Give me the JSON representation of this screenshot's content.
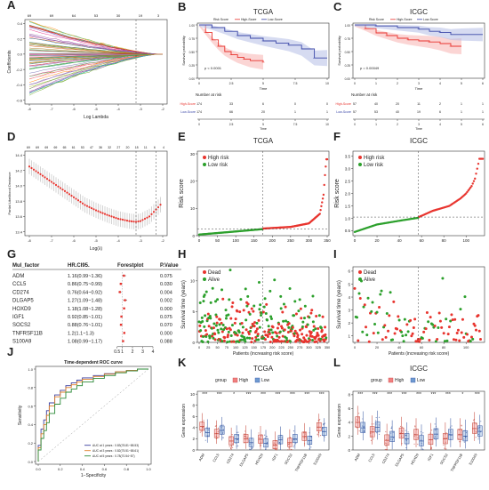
{
  "panel_letters": [
    "A",
    "B",
    "C",
    "D",
    "E",
    "F",
    "G",
    "H",
    "I",
    "J",
    "K",
    "L"
  ],
  "panels": {
    "A": {
      "top_ticks": [
        "69",
        "69",
        "64",
        "53",
        "30",
        "19",
        "3"
      ],
      "ylabel": "Coefficients",
      "xlabel": "Log Lambda",
      "y_ticks": [
        "0.4",
        "0.2",
        "0.0",
        "-0.2",
        "-0.4",
        "-0.6"
      ],
      "x_ticks": [
        "-8",
        "-7",
        "-6",
        "-5",
        "-4",
        "-3",
        "-2"
      ]
    },
    "B": {
      "title": "TCGA",
      "legend_title": "Risk Score",
      "legend_items": [
        "High-Score",
        "Low-Score"
      ],
      "pvalue": "p < 0.0001",
      "ylabel": "Survival probability",
      "xlabel": "Time",
      "risk_title": "Number at risk",
      "risk_rows": [
        {
          "label": "High-Score",
          "values": [
            "174",
            "33",
            "6",
            "0",
            "0"
          ]
        },
        {
          "label": "Low-Score",
          "values": [
            "174",
            "66",
            "20",
            "1",
            "1"
          ]
        }
      ],
      "x_ticks": [
        "0",
        "2.5",
        "5",
        "7.5",
        "10"
      ]
    },
    "C": {
      "title": "ICGC",
      "legend_title": "Risk Score",
      "legend_items": [
        "High-Score",
        "Low-Score"
      ],
      "pvalue": "p = 0.00049",
      "ylabel": "Survival probability",
      "xlabel": "Time",
      "risk_title": "Number at risk",
      "risk_rows": [
        {
          "label": "High-Score",
          "values": [
            "57",
            "40",
            "20",
            "11",
            "2",
            "1",
            "1"
          ]
        },
        {
          "label": "Low-Score",
          "values": [
            "57",
            "53",
            "40",
            "19",
            "6",
            "1",
            "1"
          ]
        }
      ],
      "x_ticks": [
        "0",
        "1",
        "2",
        "3",
        "4",
        "5",
        "6"
      ]
    },
    "D": {
      "top_ticks": [
        "69",
        "69",
        "69",
        "69",
        "65",
        "61",
        "53",
        "47",
        "36",
        "32",
        "27",
        "20",
        "18",
        "11",
        "6",
        "4"
      ],
      "ylabel": "Partial Likelihood Deviance",
      "xlabel": "Log(λ)",
      "x_ticks": [
        "-8",
        "-7",
        "-6",
        "-5",
        "-4",
        "-3",
        "-2"
      ],
      "y_ticks": [
        "14.4",
        "14.2",
        "14.0",
        "13.8",
        "13.6",
        "13.4"
      ]
    },
    "E": {
      "title": "TCGA",
      "legend_items": [
        "High risk",
        "Low risk"
      ],
      "ylabel": "Risk score",
      "y_ticks": [
        "0",
        "10",
        "20",
        "30"
      ],
      "x_ticks": [
        "0",
        "50",
        "100",
        "150",
        "200",
        "250",
        "300",
        "350"
      ]
    },
    "F": {
      "title": "ICGC",
      "legend_items": [
        "High risk",
        "Low risk"
      ],
      "ylabel": "Risk score",
      "y_ticks": [
        "0.5",
        "1.0",
        "1.5",
        "2.0",
        "2.5",
        "3.0",
        "3.5"
      ],
      "x_ticks": [
        "0",
        "20",
        "40",
        "60",
        "80",
        "100"
      ]
    },
    "G": {
      "headers": [
        "Mul_factor",
        "HR.CI95.",
        "Forestplot",
        "P.Value"
      ],
      "rows": [
        {
          "factor": "ADM",
          "hr": "1.16(0.99~1.36)",
          "p": "0.075"
        },
        {
          "factor": "CCL5",
          "hr": "0.86(0.75~0.99)",
          "p": "0.030"
        },
        {
          "factor": "CD274",
          "hr": "0.76(0.64~0.92)",
          "p": "0.004"
        },
        {
          "factor": "DLGAP5",
          "hr": "1.27(1.09~1.48)",
          "p": "0.002"
        },
        {
          "factor": "HOXD9",
          "hr": "1.18(1.08~1.28)",
          "p": "0.000"
        },
        {
          "factor": "IGF1",
          "hr": "0.92(0.85~1.01)",
          "p": "0.075"
        },
        {
          "factor": "SOCS2",
          "hr": "0.88(0.76~1.01)",
          "p": "0.070"
        },
        {
          "factor": "TNFRSF11B",
          "hr": "1.2(1.1~1.3)",
          "p": "0.000"
        },
        {
          "factor": "S100A9",
          "hr": "1.08(0.99~1.17)",
          "p": "0.088"
        }
      ],
      "x_ticks": [
        "0.5",
        "1",
        "2",
        "3",
        "4"
      ]
    },
    "H": {
      "legend_items": [
        "Dead",
        "Alive"
      ],
      "ylabel": "Survival time (years)",
      "xlabel": "Patients (increasing risk score)",
      "y_ticks": [
        "0",
        "5",
        "10"
      ],
      "x_ticks": [
        "0",
        "25",
        "50",
        "75",
        "100",
        "125",
        "150",
        "175",
        "200",
        "225",
        "250",
        "275",
        "300",
        "325",
        "350"
      ]
    },
    "I": {
      "legend_items": [
        "Dead",
        "Alive"
      ],
      "ylabel": "Survival time (years)",
      "xlabel": "Patients (increasing risk score)",
      "y_ticks": [
        "1",
        "2",
        "3",
        "4",
        "5",
        "6"
      ],
      "x_ticks": [
        "0",
        "20",
        "40",
        "60",
        "80",
        "100"
      ]
    },
    "J": {
      "title": "Time-dependent ROC curve",
      "ylabel": "Sensitivity",
      "xlabel": "1−Specificity",
      "y_ticks": [
        "0.0",
        "0.2",
        "0.4",
        "0.6",
        "0.8",
        "1.0"
      ],
      "x_ticks": [
        "0.0",
        "0.2",
        "0.4",
        "0.6",
        "0.8",
        "1.0"
      ],
      "legend_items": [
        {
          "label": "AUC at 1 years : 0.83(78.81~88.53)",
          "color": "#3b3fa0"
        },
        {
          "label": "AUC at 3 years : 0.82(75.51~88.61)",
          "color": "#e0802a"
        },
        {
          "label": "AUC at 5 years : 0.78(70.54~87)",
          "color": "#2e8b3a"
        }
      ]
    },
    "K": {
      "title": "TCGA",
      "legend_title": "group",
      "legend_items": [
        "High",
        "Low"
      ],
      "ylabel": "Gene expression",
      "genes": [
        "ADM",
        "CCL5",
        "CD274",
        "DLGAP5",
        "HOXD9",
        "IGF1",
        "SOCS2",
        "TNFRSF11B",
        "S100A9"
      ],
      "sig": [
        "***",
        "***",
        "*",
        "***",
        "***",
        "***",
        "***",
        "***",
        "***"
      ],
      "y_ticks": [
        "0",
        "2",
        "4",
        "6",
        "8",
        "10"
      ]
    },
    "L": {
      "title": "ICGC",
      "legend_title": "group",
      "legend_items": [
        "High",
        "Low"
      ],
      "ylabel": "Gene expression",
      "genes": [
        "ADM",
        "CCL5",
        "CD274",
        "DLGAP5",
        "HOXD9",
        "IGF1",
        "SOCS2",
        "TNFRSF11B",
        "S100A9"
      ],
      "sig": [
        "***",
        "***",
        "***",
        "***",
        "***",
        "***",
        "***",
        "*",
        "***"
      ],
      "y_ticks": [
        "0",
        "2",
        "4",
        "6",
        "8"
      ]
    }
  },
  "colors": {
    "high": "#e8342e",
    "low": "#3b47a8",
    "green": "#2ca02c",
    "box_high": "#f08080",
    "box_low": "#6f9ad0",
    "ci_high": "#f7b3b0",
    "ci_low": "#b5bde6"
  },
  "chart_data": [
    {
      "panel": "A",
      "type": "line",
      "title": "",
      "xlabel": "Log Lambda",
      "ylabel": "Coefficients",
      "xlim": [
        -8,
        -2
      ],
      "ylim": [
        -0.6,
        0.45
      ],
      "series_count": 69,
      "note_values": "LASSO coefficient paths converging to 0 as log lambda increases"
    },
    {
      "panel": "B",
      "type": "line",
      "title": "TCGA",
      "xlabel": "Time",
      "ylabel": "Survival probability",
      "xlim": [
        0,
        10
      ],
      "ylim": [
        0,
        1
      ],
      "series": [
        {
          "name": "High-Score",
          "x": [
            0,
            0.5,
            1,
            1.5,
            2,
            2.5,
            3,
            3.5,
            4,
            5
          ],
          "y": [
            1.0,
            0.86,
            0.72,
            0.6,
            0.5,
            0.44,
            0.39,
            0.36,
            0.33,
            0.3
          ]
        },
        {
          "name": "Low-Score",
          "x": [
            0,
            1,
            2,
            3,
            4,
            5,
            6,
            7,
            8,
            9,
            10
          ],
          "y": [
            1.0,
            0.95,
            0.88,
            0.8,
            0.75,
            0.7,
            0.66,
            0.62,
            0.55,
            0.38,
            0.38
          ]
        }
      ]
    },
    {
      "panel": "C",
      "type": "line",
      "title": "ICGC",
      "xlabel": "Time",
      "ylabel": "Survival probability",
      "xlim": [
        0,
        6
      ],
      "ylim": [
        0,
        1
      ],
      "series": [
        {
          "name": "High-Score",
          "x": [
            0,
            0.5,
            1,
            1.5,
            2,
            2.5,
            3,
            3.5,
            4,
            4.5,
            5
          ],
          "y": [
            1.0,
            0.93,
            0.85,
            0.8,
            0.75,
            0.72,
            0.7,
            0.68,
            0.65,
            0.6,
            0.6
          ]
        },
        {
          "name": "Low-Score",
          "x": [
            0,
            1,
            2,
            3,
            3.5,
            4,
            4.5,
            5,
            6
          ],
          "y": [
            1.0,
            0.98,
            0.95,
            0.92,
            0.88,
            0.86,
            0.82,
            0.82,
            0.82
          ]
        }
      ]
    },
    {
      "panel": "D",
      "type": "scatter",
      "title": "",
      "xlabel": "Log(λ)",
      "ylabel": "Partial Likelihood Deviance",
      "xlim": [
        -8.2,
        -1.8
      ],
      "ylim": [
        13.35,
        14.45
      ],
      "x": [
        -8,
        -7.5,
        -7,
        -6.5,
        -6,
        -5.5,
        -5,
        -4.5,
        -4,
        -3.5,
        -3.2,
        -3,
        -2.6,
        -2.2,
        -1.9
      ],
      "y": [
        14.25,
        14.15,
        14.05,
        13.95,
        13.85,
        13.75,
        13.68,
        13.62,
        13.57,
        13.54,
        13.53,
        13.54,
        13.6,
        13.72,
        13.82
      ],
      "vlines": [
        -3.2,
        -2.3
      ]
    },
    {
      "panel": "E",
      "type": "scatter",
      "title": "TCGA",
      "xlabel": "",
      "ylabel": "Risk score",
      "xlim": [
        0,
        350
      ],
      "ylim": [
        0,
        30
      ],
      "cutoff_index": 174,
      "cutoff_score": 2.5,
      "series": [
        {
          "name": "High risk",
          "x": [
            175,
            250,
            300,
            330,
            340,
            345,
            348
          ],
          "y": [
            2.6,
            3.2,
            4.5,
            8,
            15,
            24,
            28
          ]
        },
        {
          "name": "Low risk",
          "x": [
            0,
            80,
            174
          ],
          "y": [
            0.4,
            1.3,
            2.4
          ]
        }
      ]
    },
    {
      "panel": "F",
      "type": "scatter",
      "title": "ICGC",
      "xlabel": "",
      "ylabel": "Risk score",
      "xlim": [
        0,
        115
      ],
      "ylim": [
        0.3,
        3.6
      ],
      "cutoff_index": 57,
      "cutoff_score": 1.05,
      "series": [
        {
          "name": "High risk",
          "x": [
            58,
            70,
            85,
            95,
            100,
            105,
            108,
            112
          ],
          "y": [
            1.06,
            1.3,
            1.5,
            1.8,
            2.0,
            2.3,
            2.6,
            3.4
          ]
        },
        {
          "name": "Low risk",
          "x": [
            0,
            20,
            40,
            57
          ],
          "y": [
            0.45,
            0.75,
            0.9,
            1.02
          ]
        }
      ]
    },
    {
      "panel": "G",
      "type": "table",
      "title": "",
      "columns": [
        "Mul_factor",
        "HR.CI95.",
        "P.Value"
      ],
      "rows": [
        [
          "ADM",
          "1.16(0.99~1.36)",
          "0.075"
        ],
        [
          "CCL5",
          "0.86(0.75~0.99)",
          "0.030"
        ],
        [
          "CD274",
          "0.76(0.64~0.92)",
          "0.004"
        ],
        [
          "DLGAP5",
          "1.27(1.09~1.48)",
          "0.002"
        ],
        [
          "HOXD9",
          "1.18(1.08~1.28)",
          "0.000"
        ],
        [
          "IGF1",
          "0.92(0.85~1.01)",
          "0.075"
        ],
        [
          "SOCS2",
          "0.88(0.76~1.01)",
          "0.070"
        ],
        [
          "TNFRSF11B",
          "1.2(1.1~1.3)",
          "0.000"
        ],
        [
          "S100A9",
          "1.08(0.99~1.17)",
          "0.088"
        ]
      ]
    },
    {
      "panel": "H",
      "type": "scatter",
      "title": "",
      "xlabel": "Patients (increasing risk score)",
      "ylabel": "Survival time (years)",
      "xlim": [
        0,
        350
      ],
      "ylim": [
        0,
        12
      ],
      "series": [
        {
          "name": "Dead"
        },
        {
          "name": "Alive"
        }
      ]
    },
    {
      "panel": "I",
      "type": "scatter",
      "title": "",
      "xlabel": "Patients (increasing risk score)",
      "ylabel": "Survival time (years)",
      "xlim": [
        0,
        115
      ],
      "ylim": [
        0.5,
        6.2
      ],
      "series": [
        {
          "name": "Dead"
        },
        {
          "name": "Alive"
        }
      ]
    },
    {
      "panel": "J",
      "type": "line",
      "title": "Time-dependent ROC curve",
      "xlabel": "1−Specificity",
      "ylabel": "Sensitivity",
      "xlim": [
        0,
        1
      ],
      "ylim": [
        0,
        1
      ],
      "series": [
        {
          "name": "AUC at 1 years : 0.83(78.81~88.53)",
          "x": [
            0,
            0.05,
            0.1,
            0.2,
            0.3,
            0.4,
            0.6,
            0.8,
            1
          ],
          "y": [
            0,
            0.35,
            0.55,
            0.72,
            0.82,
            0.88,
            0.93,
            0.97,
            1
          ]
        },
        {
          "name": "AUC at 3 years : 0.82(75.51~88.61)",
          "x": [
            0,
            0.05,
            0.1,
            0.2,
            0.3,
            0.4,
            0.6,
            0.8,
            1
          ],
          "y": [
            0,
            0.3,
            0.5,
            0.7,
            0.8,
            0.86,
            0.92,
            0.97,
            1
          ]
        },
        {
          "name": "AUC at 5 years : 0.78(70.54~87)",
          "x": [
            0,
            0.05,
            0.1,
            0.2,
            0.3,
            0.4,
            0.6,
            0.8,
            1
          ],
          "y": [
            0,
            0.25,
            0.42,
            0.62,
            0.75,
            0.82,
            0.9,
            0.96,
            1
          ]
        }
      ]
    },
    {
      "panel": "K",
      "type": "bar",
      "title": "TCGA",
      "ylabel": "Gene expression",
      "ylim": [
        0,
        10.5
      ],
      "categories": [
        "ADM",
        "CCL5",
        "CD274",
        "DLGAP5",
        "HOXD9",
        "IGF1",
        "SOCS2",
        "TNFRSF11B",
        "S100A9"
      ],
      "series": [
        {
          "name": "High",
          "values": [
            4.2,
            2.9,
            1.6,
            2.0,
            1.9,
            0.9,
            1.3,
            2.4,
            4.1
          ]
        },
        {
          "name": "Low",
          "values": [
            3.1,
            3.5,
            2.0,
            1.3,
            1.2,
            1.8,
            2.0,
            1.7,
            3.3
          ]
        }
      ]
    },
    {
      "panel": "L",
      "type": "bar",
      "title": "ICGC",
      "ylabel": "Gene expression",
      "ylim": [
        0,
        8.5
      ],
      "categories": [
        "ADM",
        "CCL5",
        "CD274",
        "DLGAP5",
        "HOXD9",
        "IGF1",
        "SOCS2",
        "TNFRSF11B",
        "S100A9"
      ],
      "series": [
        {
          "name": "High",
          "values": [
            4.0,
            2.6,
            1.4,
            2.4,
            2.2,
            1.5,
            1.6,
            2.2,
            3.1
          ]
        },
        {
          "name": "Low",
          "values": [
            3.2,
            3.3,
            1.9,
            1.6,
            1.3,
            2.3,
            2.2,
            2.0,
            2.7
          ]
        }
      ]
    }
  ]
}
